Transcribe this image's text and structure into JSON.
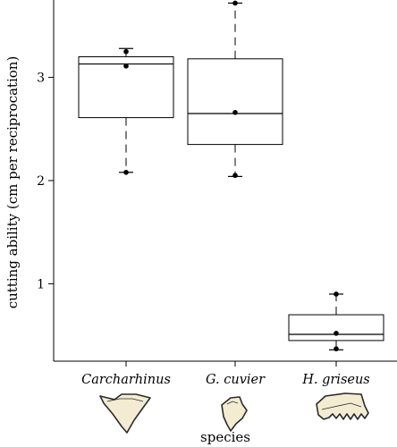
{
  "chart_data": {
    "type": "box",
    "xlabel": "species",
    "ylabel": "cutting ability (cm per reciprocation)",
    "ylim": [
      0.25,
      3.75
    ],
    "yticks": [
      1,
      2,
      3
    ],
    "grid": false,
    "categories": [
      {
        "name": "Carcharhinus",
        "min": 2.08,
        "q1": 2.61,
        "median": 3.13,
        "q3": 3.2,
        "max": 3.28,
        "points": [
          2.08,
          3.11,
          3.25
        ],
        "tooth": "carcharhinus-tooth"
      },
      {
        "name": "G. cuvier",
        "min": 2.04,
        "q1": 2.35,
        "median": 2.65,
        "q3": 3.18,
        "max": 3.72,
        "points": [
          2.05,
          2.66,
          3.72
        ],
        "tooth": "g-cuvier-tooth"
      },
      {
        "name": "H. griseus",
        "min": 0.36,
        "q1": 0.45,
        "median": 0.51,
        "q3": 0.7,
        "max": 0.9,
        "points": [
          0.37,
          0.52,
          0.9
        ],
        "tooth": "h-griseus-tooth"
      }
    ],
    "colors": {
      "box_stroke": "#000000",
      "point": "#000000",
      "tooth_fill": "#f3ecd2",
      "tooth_stroke": "#2b2b2b"
    }
  }
}
